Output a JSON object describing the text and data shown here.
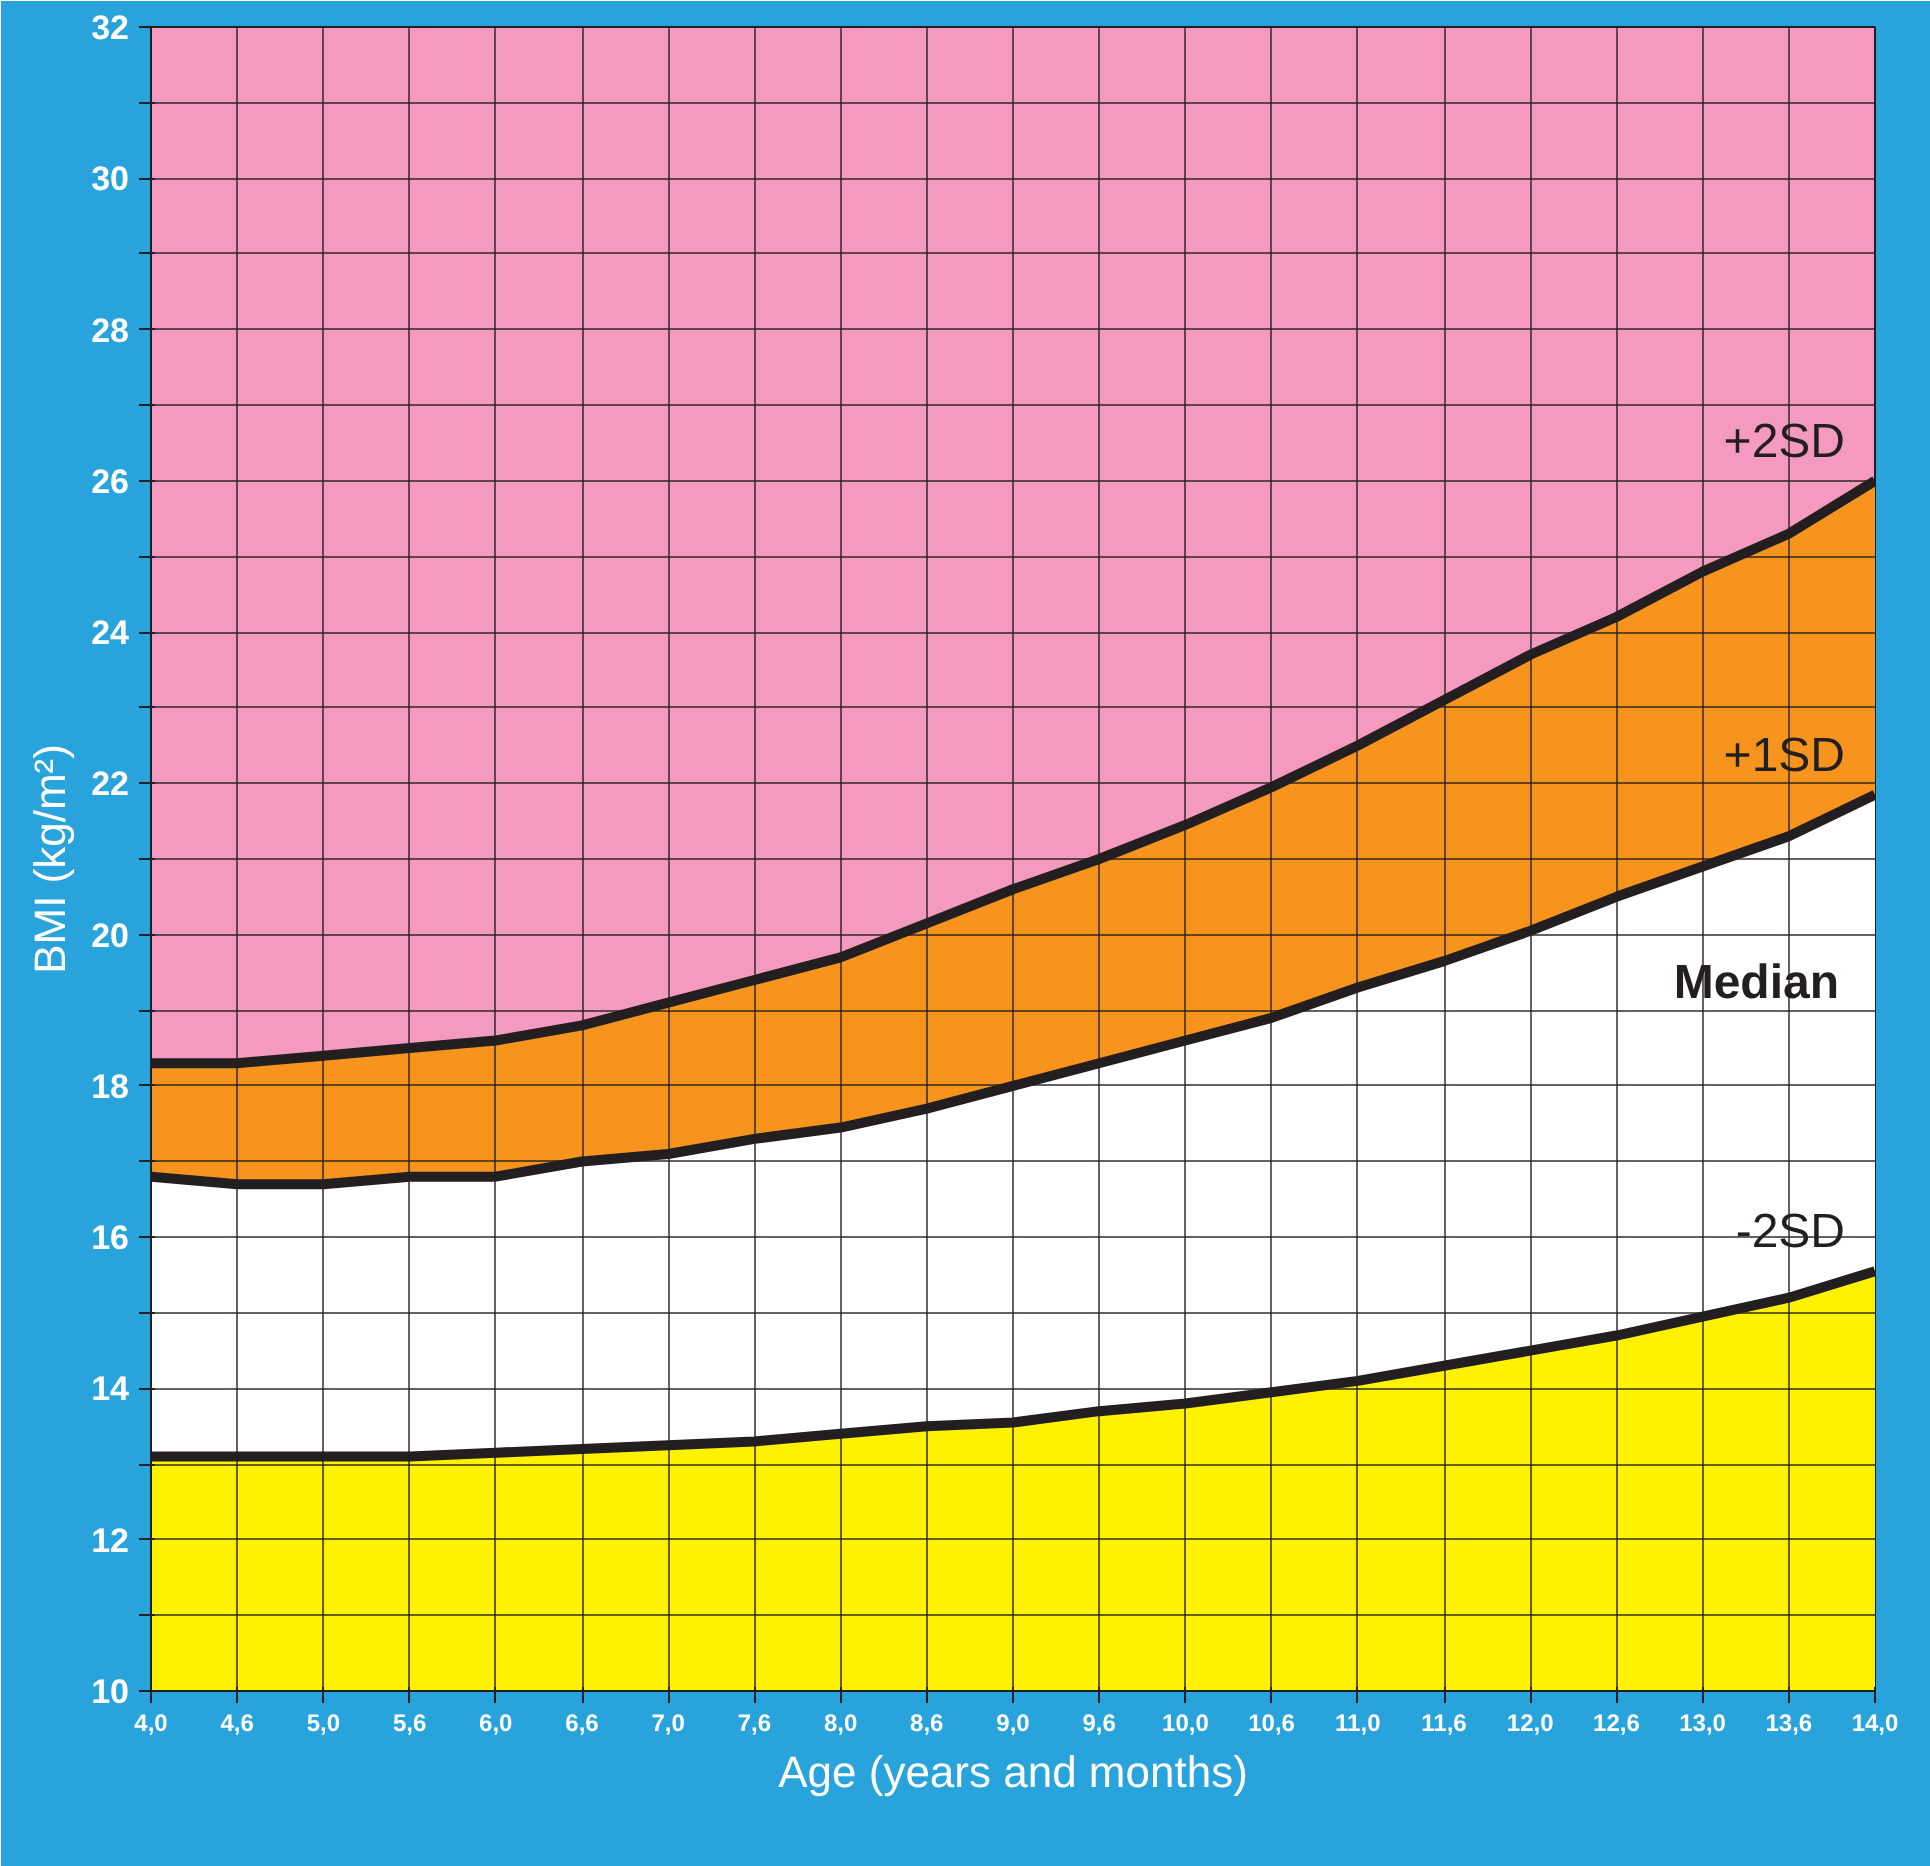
{
  "chart_data": {
    "type": "area",
    "xlabel": "Age (years and months)",
    "ylabel": "BMI (kg/m²)",
    "categories": [
      "4,0",
      "4,6",
      "5,0",
      "5,6",
      "6,0",
      "6,6",
      "7,0",
      "7,6",
      "8,0",
      "8,6",
      "9,0",
      "9,6",
      "10,0",
      "10,6",
      "11,0",
      "11,6",
      "12,0",
      "12,6",
      "13,0",
      "13,6",
      "14,0"
    ],
    "series": [
      {
        "name": "+2SD",
        "color": "#f7941d",
        "values": [
          18.3,
          18.3,
          18.4,
          18.5,
          18.6,
          18.8,
          19.1,
          19.4,
          19.7,
          20.15,
          20.6,
          21.0,
          21.45,
          21.95,
          22.5,
          23.1,
          23.7,
          24.2,
          24.8,
          25.3,
          26.0
        ]
      },
      {
        "name": "+1SD",
        "color": "#ffffff",
        "values": [
          16.8,
          16.7,
          16.7,
          16.8,
          16.8,
          17.0,
          17.1,
          17.3,
          17.45,
          17.7,
          18.0,
          18.3,
          18.6,
          18.9,
          19.3,
          19.65,
          20.05,
          20.5,
          20.9,
          21.3,
          21.85
        ]
      },
      {
        "name": "-2SD",
        "color": "#fff200",
        "values": [
          13.1,
          13.1,
          13.1,
          13.1,
          13.15,
          13.2,
          13.25,
          13.3,
          13.4,
          13.5,
          13.55,
          13.7,
          13.8,
          13.95,
          14.1,
          14.3,
          14.5,
          14.7,
          14.95,
          15.2,
          15.55
        ]
      }
    ],
    "annotations": [
      "Median"
    ],
    "ylim": [
      10,
      32
    ],
    "yticks": [
      10,
      {
        "value": 11,
        "label": null
      },
      12,
      {
        "value": 13,
        "label": null
      },
      14,
      {
        "value": 15,
        "label": null
      },
      16,
      {
        "value": 17,
        "label": null
      },
      18,
      {
        "value": 19,
        "label": null
      },
      20,
      {
        "value": 21,
        "label": null
      },
      22,
      {
        "value": 23,
        "label": null
      },
      24,
      {
        "value": 25,
        "label": null
      },
      26,
      {
        "value": 27,
        "label": null
      },
      28,
      {
        "value": 29,
        "label": null
      },
      30,
      {
        "value": 31,
        "label": null
      },
      32
    ],
    "grid": true
  }
}
